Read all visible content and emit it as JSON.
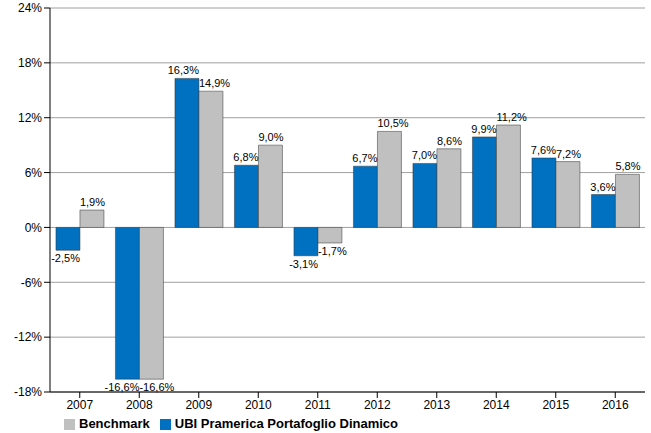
{
  "chart_data": {
    "type": "bar",
    "categories": [
      "2007",
      "2008",
      "2009",
      "2010",
      "2011",
      "2012",
      "2013",
      "2014",
      "2015",
      "2016"
    ],
    "series": [
      {
        "name": "UBI Pramerica Portafoglio Dinamico",
        "color": "#0070c0",
        "values": [
          -2.5,
          -16.6,
          16.3,
          6.8,
          -3.1,
          6.7,
          7.0,
          9.9,
          7.6,
          3.6
        ],
        "value_labels": [
          "-2,5%",
          "-16,6%",
          "16,3%",
          "6,8%",
          "-3,1%",
          "6,7%",
          "7,0%",
          "9,9%",
          "7,6%",
          "3,6%"
        ]
      },
      {
        "name": "Benchmark",
        "color": "#c0c0c0",
        "values": [
          1.9,
          -16.6,
          14.9,
          9.0,
          -1.7,
          10.5,
          8.6,
          11.2,
          7.2,
          5.8
        ],
        "value_labels": [
          "1,9%",
          "-16,6%",
          "14,9%",
          "9,0%",
          "-1,7%",
          "10,5%",
          "8,6%",
          "11,2%",
          "7,2%",
          "5,8%"
        ]
      }
    ],
    "ylim": [
      -18,
      24
    ],
    "yticks": [
      {
        "value": -18,
        "label": "-18%"
      },
      {
        "value": -12,
        "label": "-12%"
      },
      {
        "value": -6,
        "label": "-6%"
      },
      {
        "value": 0,
        "label": "0%"
      },
      {
        "value": 6,
        "label": "6%"
      },
      {
        "value": 12,
        "label": "12%"
      },
      {
        "value": 18,
        "label": "18%"
      },
      {
        "value": 24,
        "label": "24%"
      }
    ],
    "grid": true,
    "legend": "bottom",
    "data_labels": true
  }
}
